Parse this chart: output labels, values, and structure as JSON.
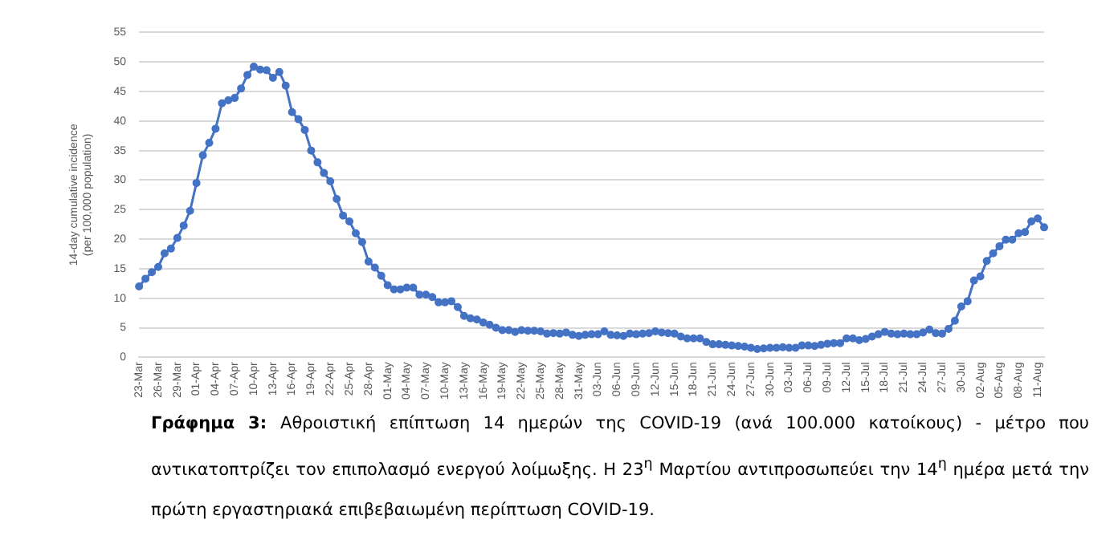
{
  "chart_data": {
    "type": "line",
    "ylabel": "14-day cumulative incidence\n(per 100,000 population)",
    "categories": [
      "23-Mar",
      null,
      null,
      "26-Mar",
      null,
      null,
      "29-Mar",
      null,
      null,
      "01-Apr",
      null,
      null,
      "04-Apr",
      null,
      null,
      "07-Apr",
      null,
      null,
      "10-Apr",
      null,
      null,
      "13-Apr",
      null,
      null,
      "16-Apr",
      null,
      null,
      "19-Apr",
      null,
      null,
      "22-Apr",
      null,
      null,
      "25-Apr",
      null,
      null,
      "28-Apr",
      null,
      null,
      "01-May",
      null,
      null,
      "04-May",
      null,
      null,
      "07-May",
      null,
      null,
      "10-May",
      null,
      null,
      "13-May",
      null,
      null,
      "16-May",
      null,
      null,
      "19-May",
      null,
      null,
      "22-May",
      null,
      null,
      "25-May",
      null,
      null,
      "28-May",
      null,
      null,
      "31-May",
      null,
      null,
      "03-Jun",
      null,
      null,
      "06-Jun",
      null,
      null,
      "09-Jun",
      null,
      null,
      "12-Jun",
      null,
      null,
      "15-Jun",
      null,
      null,
      "18-Jun",
      null,
      null,
      "21-Jun",
      null,
      null,
      "24-Jun",
      null,
      null,
      "27-Jun",
      null,
      null,
      "30-Jun",
      null,
      null,
      "03-Jul",
      null,
      null,
      "06-Jul",
      null,
      null,
      "09-Jul",
      null,
      null,
      "12-Jul",
      null,
      null,
      "15-Jul",
      null,
      null,
      "18-Jul",
      null,
      null,
      "21-Jul",
      null,
      null,
      "24-Jul",
      null,
      null,
      "27-Jul",
      null,
      null,
      "30-Jul",
      null,
      null,
      "02-Aug",
      null,
      null,
      "05-Aug",
      null,
      null,
      "08-Aug",
      null,
      null,
      "11-Aug",
      null
    ],
    "series": [
      {
        "color": "#4472c4",
        "values": [
          12,
          13.3,
          14.4,
          15.3,
          17.6,
          18.4,
          20.2,
          22.3,
          24.8,
          29.5,
          34.2,
          36.3,
          38.7,
          43,
          43.5,
          43.9,
          45.5,
          47.8,
          49.2,
          48.7,
          48.6,
          47.3,
          48.3,
          46,
          41.5,
          40.3,
          38.5,
          35,
          33,
          31.2,
          29.8,
          26.8,
          24,
          23,
          21,
          19.5,
          16.2,
          15.2,
          13.8,
          12.2,
          11.5,
          11.5,
          11.8,
          11.8,
          10.6,
          10.6,
          10.2,
          9.3,
          9.3,
          9.5,
          8.5,
          7,
          6.6,
          6.4,
          5.9,
          5.5,
          5,
          4.6,
          4.6,
          4.3,
          4.6,
          4.5,
          4.5,
          4.4,
          4.0,
          4.1,
          4.0,
          4.2,
          3.8,
          3.6,
          3.8,
          3.9,
          3.9,
          4.4,
          3.8,
          3.7,
          3.6,
          4.0,
          3.9,
          4.0,
          4.1,
          4.4,
          4.2,
          4.1,
          4.0,
          3.5,
          3.2,
          3.2,
          3.2,
          2.6,
          2.2,
          2.2,
          2.1,
          2.0,
          1.9,
          1.8,
          1.6,
          1.4,
          1.5,
          1.6,
          1.6,
          1.7,
          1.6,
          1.6,
          2.0,
          2.0,
          1.9,
          2.1,
          2.3,
          2.4,
          2.4,
          3.2,
          3.2,
          2.9,
          3.1,
          3.5,
          3.9,
          4.3,
          4.0,
          3.9,
          4.0,
          3.9,
          3.9,
          4.2,
          4.7,
          4.1,
          4.0,
          4.8,
          6.2,
          8.6,
          9.5,
          13,
          13.7,
          16.3,
          17.6,
          18.8,
          19.9,
          19.9,
          21,
          21.2,
          23,
          23.5,
          22
        ]
      }
    ],
    "ylim": [
      0,
      55
    ],
    "yticks": [
      0,
      5,
      10,
      15,
      20,
      25,
      30,
      35,
      40,
      45,
      50,
      55
    ],
    "grid": "y",
    "legend": false,
    "marker": "circle",
    "line_style": "solid",
    "annotations": [
      "Γράφημα 3:",
      "Αθροιστική επίπτωση 14 ημερών της COVID-19 (ανά 100.000 κατοίκους) - μέτρο που αντικατοπτρίζει τον επιπολασμό ενεργού λοίμωξης. Η 23$^{η}$ Μαρτίου αντιπροσωπεύει την 14$^{η}$ ημέρα μετά την πρώτη εργαστηριακά επιβεβαιωμένη περίπτωση COVID-19."
    ]
  }
}
